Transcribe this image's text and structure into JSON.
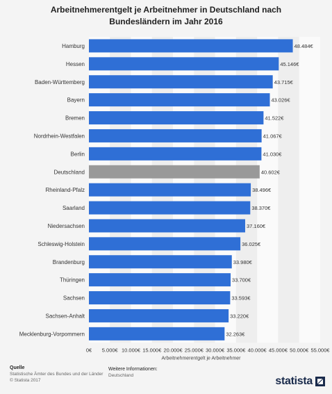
{
  "title_line1": "Arbeitnehmerentgelt je Arbeitnehmer in Deutschland nach",
  "title_line2": "Bundesländern im Jahr 2016",
  "footer": {
    "source_header": "Quelle",
    "source_line1": "Statistische Ämter des Bundes und der Länder",
    "source_line2": "© Statista 2017",
    "info_header": "Weitere Informationen:",
    "info_line1": "Deutschland"
  },
  "brand": "statista",
  "colors": {
    "bar": "#2f6fd6",
    "highlight": "#999999",
    "band_light": "#fafafa",
    "band_dark": "#eeeeee"
  },
  "chart_data": {
    "type": "bar",
    "orientation": "horizontal",
    "categories": [
      "Hamburg",
      "Hessen",
      "Baden-Württemberg",
      "Bayern",
      "Bremen",
      "Nordrhein-Westfalen",
      "Berlin",
      "Deutschland",
      "Rheinland-Pfalz",
      "Saarland",
      "Niedersachsen",
      "Schleswig-Holstein",
      "Brandenburg",
      "Thüringen",
      "Sachsen",
      "Sachsen-Anhalt",
      "Mecklenburg-Vorpommern"
    ],
    "values": [
      48484,
      45146,
      43715,
      43026,
      41522,
      41067,
      41030,
      40602,
      38496,
      38370,
      37160,
      36025,
      33980,
      33700,
      33593,
      33220,
      32263
    ],
    "value_labels": [
      "48.484€",
      "45.146€",
      "43.715€",
      "43.026€",
      "41.522€",
      "41.067€",
      "41.030€",
      "40.602€",
      "38.496€",
      "38.370€",
      "37.160€",
      "36.025€",
      "33.980€",
      "33.700€",
      "33.593€",
      "33.220€",
      "32.263€"
    ],
    "highlight_index": 7,
    "xlabel": "Arbeitnehmerentgelt je Arbeitnehmer",
    "xlim": [
      0,
      55000
    ],
    "ticks": [
      0,
      5000,
      10000,
      15000,
      20000,
      25000,
      30000,
      35000,
      40000,
      45000,
      50000,
      55000
    ],
    "tick_labels": [
      "0€",
      "5.000€",
      "10.000€",
      "15.000€",
      "20.000€",
      "25.000€",
      "30.000€",
      "35.000€",
      "40.000€",
      "45.000€",
      "50.000€",
      "55.000€"
    ]
  }
}
